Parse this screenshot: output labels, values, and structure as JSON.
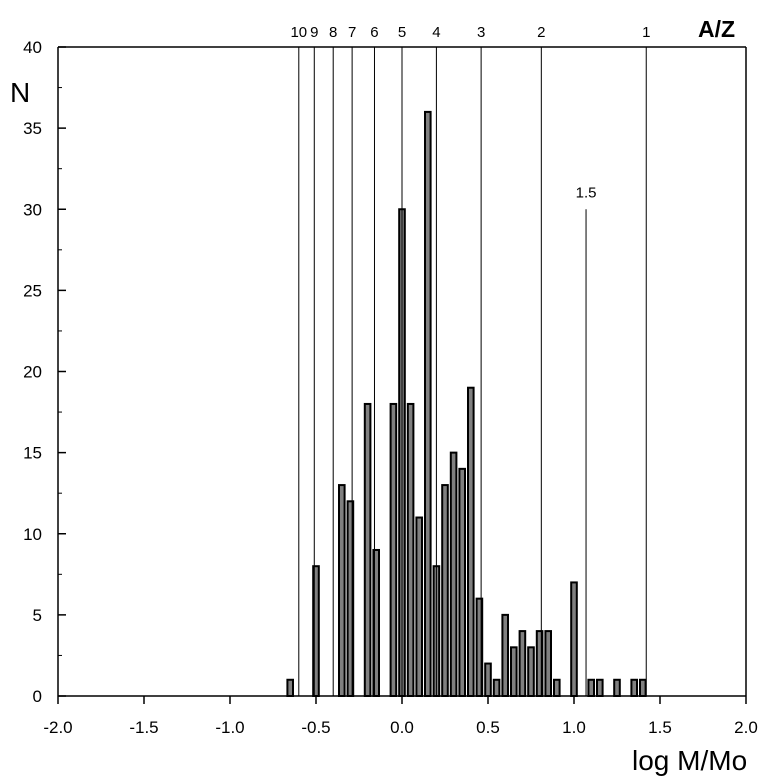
{
  "chart_data": {
    "type": "bar",
    "xlabel": "log M/Mo",
    "ylabel": "N",
    "top_axis_label": "A/Z",
    "xlim": [
      -2.0,
      2.0
    ],
    "ylim": [
      0,
      40
    ],
    "xticks": [
      "-2.0",
      "-1.5",
      "-1.0",
      "-0.5",
      "0.0",
      "0.5",
      "1.0",
      "1.5",
      "2.0"
    ],
    "yticks": [
      "0",
      "5",
      "10",
      "15",
      "20",
      "25",
      "30",
      "35",
      "40"
    ],
    "bin_width": 0.05,
    "bins": [
      {
        "x": -0.65,
        "n": 1
      },
      {
        "x": -0.5,
        "n": 8
      },
      {
        "x": -0.35,
        "n": 13
      },
      {
        "x": -0.3,
        "n": 12
      },
      {
        "x": -0.2,
        "n": 18
      },
      {
        "x": -0.15,
        "n": 9
      },
      {
        "x": -0.05,
        "n": 18
      },
      {
        "x": 0.0,
        "n": 30
      },
      {
        "x": 0.05,
        "n": 18
      },
      {
        "x": 0.1,
        "n": 11
      },
      {
        "x": 0.15,
        "n": 36
      },
      {
        "x": 0.2,
        "n": 8
      },
      {
        "x": 0.25,
        "n": 13
      },
      {
        "x": 0.3,
        "n": 15
      },
      {
        "x": 0.35,
        "n": 14
      },
      {
        "x": 0.4,
        "n": 19
      },
      {
        "x": 0.45,
        "n": 6
      },
      {
        "x": 0.5,
        "n": 2
      },
      {
        "x": 0.55,
        "n": 1
      },
      {
        "x": 0.6,
        "n": 5
      },
      {
        "x": 0.65,
        "n": 3
      },
      {
        "x": 0.7,
        "n": 4
      },
      {
        "x": 0.75,
        "n": 3
      },
      {
        "x": 0.8,
        "n": 4
      },
      {
        "x": 0.85,
        "n": 4
      },
      {
        "x": 0.9,
        "n": 1
      },
      {
        "x": 1.0,
        "n": 7
      },
      {
        "x": 1.1,
        "n": 1
      },
      {
        "x": 1.15,
        "n": 1
      },
      {
        "x": 1.25,
        "n": 1
      },
      {
        "x": 1.35,
        "n": 1
      },
      {
        "x": 1.4,
        "n": 1
      }
    ],
    "az_lines": [
      {
        "label": "10",
        "x": -0.6
      },
      {
        "label": "9",
        "x": -0.51
      },
      {
        "label": "8",
        "x": -0.4
      },
      {
        "label": "7",
        "x": -0.29
      },
      {
        "label": "6",
        "x": -0.16
      },
      {
        "label": "5",
        "x": 0.0
      },
      {
        "label": "4",
        "x": 0.2
      },
      {
        "label": "3",
        "x": 0.46
      },
      {
        "label": "2",
        "x": 0.81
      },
      {
        "label": "1",
        "x": 1.42
      }
    ],
    "annotation_line": {
      "label": "1.5",
      "x": 1.07,
      "top": 30
    },
    "bar_color": "#808080",
    "bar_stroke": "#000000",
    "grid": false
  }
}
